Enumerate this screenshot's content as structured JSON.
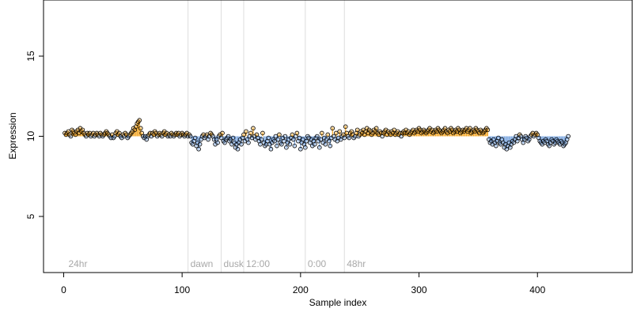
{
  "chart_data": {
    "type": "scatter",
    "title": "",
    "xlabel": "Sample index",
    "ylabel": "Expression",
    "xlim": [
      -17,
      480
    ],
    "ylim": [
      1.5,
      18.5
    ],
    "x_ticks": [
      0,
      100,
      200,
      300,
      400
    ],
    "y_ticks": [
      5,
      10,
      15
    ],
    "baseline": 10,
    "grid": false,
    "colors": {
      "above_baseline": "#f5a623",
      "below_baseline": "#7aa6e0",
      "point_edge": "#000000",
      "annotation_line": "#dddddd",
      "annotation_text": "#a8a8a8"
    },
    "annotations": [
      {
        "label": "24hr",
        "x": 2,
        "line": false
      },
      {
        "label": "dawn",
        "x": 105,
        "line": true
      },
      {
        "label": "dusk",
        "x": 133,
        "line": true
      },
      {
        "label": "12:00",
        "x": 152,
        "line": true
      },
      {
        "label": "0:00",
        "x": 204,
        "line": true
      },
      {
        "label": "48hr",
        "x": 237,
        "line": true
      }
    ],
    "series": [
      {
        "x_start": 1,
        "values": [
          10.2,
          10.1,
          10.2,
          10.3,
          10.1,
          10,
          10.4,
          10.3,
          10.2,
          10.1,
          10.3,
          10.4,
          10.2,
          10.5,
          10.3,
          10.4,
          10.2,
          10.1,
          10,
          10.2,
          10.1,
          10.2,
          10,
          10.1,
          10.2,
          10,
          10.1,
          10.2,
          10.1,
          10,
          10.2,
          10.1,
          10,
          10.1,
          10.2,
          10.3,
          10.2,
          10.1,
          10,
          9.9,
          10.1,
          9.9,
          10,
          10.2,
          10.3,
          10.1,
          10.2,
          10,
          9.9,
          10.1,
          10,
          10.2,
          10.1,
          9.9,
          10,
          10.1,
          10.2,
          10.3,
          10.5,
          10.4,
          10.6,
          10.8,
          10.9,
          11,
          10.5,
          10.2,
          10,
          9.9,
          10,
          9.8,
          10,
          10.1,
          10.2,
          10,
          10.2,
          10.1,
          10.3,
          10.2,
          10,
          10.1,
          10.2,
          10.1,
          10,
          10.2,
          10.3,
          10.1,
          10.2,
          10,
          10.1,
          10,
          10.2,
          10.1,
          10,
          10.1,
          10.2,
          10.1,
          10.2,
          10,
          10.1,
          10.2,
          10.1,
          10,
          10.1,
          10.2,
          10,
          10.1,
          10,
          9.6,
          9.5,
          9.7,
          9.9,
          9.4,
          9.6,
          9.2,
          9.5,
          9.8,
          10,
          10.1,
          9.9,
          10,
          10.1,
          9.8,
          10,
          10.2,
          10.1,
          10,
          9.8,
          9.5,
          9.8,
          9.6,
          10,
          10.1,
          9.9,
          10.2,
          9.7,
          9.6,
          9.8,
          9.9,
          10,
          9.7,
          9.8,
          9.5,
          9.9,
          9.6,
          9.3,
          9.5,
          9.2,
          9.6,
          9.8,
          9.5,
          9.9,
          10.1,
          9.7,
          10.3,
          9.8,
          9.6,
          10,
          10.2,
          9.9,
          10.5,
          10,
          9.8,
          10.1,
          9.9,
          9.7,
          9.5,
          9.8,
          10.2,
          9.6,
          9.4,
          9.5,
          9.7,
          9.9,
          9.5,
          9.2,
          9.6,
          9.8,
          9.7,
          10,
          9.4,
          9.8,
          10.1,
          9.6,
          9.5,
          9.9,
          9.7,
          10,
          9.3,
          9.6,
          9.8,
          9.5,
          9.9,
          10.1,
          9.8,
          9.4,
          10,
          10.2,
          9.7,
          9.9,
          9.2,
          9.6,
          9.8,
          9.5,
          9.3,
          9.7,
          10,
          9.9,
          9.6,
          9.8,
          9.4,
          9.7,
          9.5,
          9.9,
          10,
          9.7,
          9.3,
          9.8,
          10.2,
          9.6,
          9.9,
          9.5,
          9.8,
          10.1,
          9.7,
          9.4,
          9.9,
          10.5,
          10,
          9.8,
          10.2,
          9.7,
          9.9,
          10.3,
          9.8,
          10,
          10.1,
          9.9,
          10.6,
          10.2,
          10,
          9.9,
          10.2,
          10.3,
          10.1,
          9.9,
          10,
          10.2,
          10.4,
          10,
          10.1,
          10.3,
          10.2,
          10.4,
          10.1,
          10.3,
          10.5,
          10.2,
          10.4,
          10.3,
          10.1,
          10.2,
          10.4,
          10.3,
          10.5,
          10.2,
          10.1,
          10.3,
          10.2,
          10,
          10.2,
          10.3,
          10.4,
          10.1,
          10.3,
          10.2,
          10.1,
          10.3,
          10.2,
          10.4,
          10.1,
          10.2,
          10.3,
          10.1,
          10.2,
          10,
          10.2,
          10.3,
          10.2,
          10.4,
          10.2,
          10.3,
          10.1,
          10.2,
          10.3,
          10.4,
          10.2,
          10.3,
          10.4,
          10.3,
          10.5,
          10.4,
          10.2,
          10.3,
          10.4,
          10.3,
          10.2,
          10.3,
          10.4,
          10.5,
          10.3,
          10.4,
          10.2,
          10.3,
          10.4,
          10.3,
          10.5,
          10.4,
          10.3,
          10.2,
          10.3,
          10.4,
          10.5,
          10.3,
          10.2,
          10.4,
          10.3,
          10.5,
          10.4,
          10.2,
          10.3,
          10.4,
          10.3,
          10.5,
          10.4,
          10.2,
          10.3,
          10.4,
          10.3,
          10.4,
          10.5,
          10.3,
          10.4,
          10.5,
          10.2,
          10.3,
          10.4,
          10.3,
          10.5,
          10.4,
          10.3,
          10.2,
          10.4,
          10.3,
          10.2,
          10.3,
          10.4,
          10.5,
          10.4,
          9.8,
          9.6,
          9.7,
          9.5,
          9.8,
          9.6,
          9.4,
          9.7,
          9.9,
          9.6,
          9.5,
          9.8,
          9.6,
          9.3,
          9.5,
          9.2,
          9.4,
          9.6,
          9.3,
          9.5,
          9.7,
          9.6,
          9.8,
          10,
          9.7,
          9.9,
          10.1,
          10,
          9.8,
          9.6,
          9.8,
          10,
          9.9,
          9.7,
          9.8,
          10,
          10.1,
          10.2,
          10,
          10.1,
          10.2,
          10.1,
          9.9,
          9.7,
          9.6,
          9.5,
          9.7,
          9.6,
          9.8,
          9.7,
          9.5,
          9.4,
          9.6,
          9.8,
          9.7,
          9.5,
          9.6,
          9.8,
          9.7,
          9.6,
          9.5,
          9.7,
          9.6,
          9.4,
          9.5,
          9.6,
          9.8,
          10
        ]
      }
    ]
  }
}
